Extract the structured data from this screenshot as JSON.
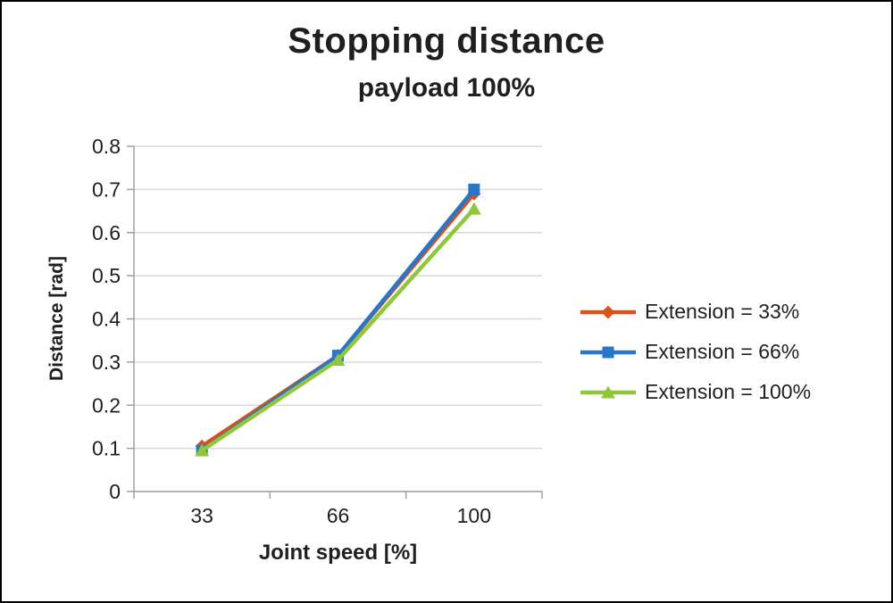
{
  "chart_data": {
    "type": "line",
    "title": "Stopping distance",
    "subtitle": "payload 100%",
    "xlabel": "Joint speed [%]",
    "ylabel": "Distance [rad]",
    "categories": [
      "33",
      "66",
      "100"
    ],
    "series": [
      {
        "name": "Extension = 33%",
        "color": "#d3541c",
        "marker": "diamond",
        "values": [
          0.105,
          0.315,
          0.69
        ]
      },
      {
        "name": "Extension = 66%",
        "color": "#2a76c6",
        "marker": "square",
        "values": [
          0.095,
          0.315,
          0.7
        ]
      },
      {
        "name": "Extension = 100%",
        "color": "#8fc63d",
        "marker": "triangle",
        "values": [
          0.095,
          0.305,
          0.655
        ]
      }
    ],
    "ylim": [
      0,
      0.8
    ],
    "ytick_step": 0.1,
    "grid": true,
    "legend_position": "right",
    "colors": {
      "gridline": "#d9d9d9",
      "axis": "#a0a0a0",
      "text": "#1f1f1f"
    }
  }
}
